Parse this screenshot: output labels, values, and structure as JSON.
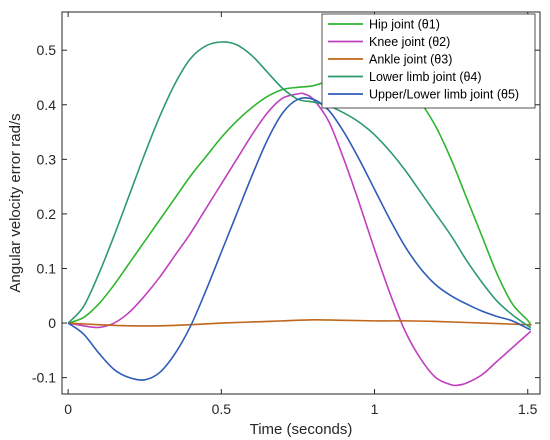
{
  "chart_data": {
    "type": "line",
    "title": "",
    "xlabel": "Time (seconds)",
    "ylabel": "Angular velocity error rad/s",
    "xlim": [
      -0.02,
      1.54
    ],
    "ylim": [
      -0.13,
      0.57
    ],
    "xticks": [
      0,
      0.5,
      1,
      1.5
    ],
    "xtick_labels": [
      "0",
      "0.5",
      "1",
      "1.5"
    ],
    "yticks": [
      -0.1,
      0,
      0.1,
      0.2,
      0.3,
      0.4,
      0.5
    ],
    "ytick_labels": [
      "-0.1",
      "0",
      "0.1",
      "0.2",
      "0.3",
      "0.4",
      "0.5"
    ],
    "grid": false,
    "legend_position": "top-right",
    "series": [
      {
        "name": "Hip joint (θ1)",
        "color": "#2fb52f",
        "x": [
          0,
          0.05,
          0.1,
          0.15,
          0.2,
          0.25,
          0.3,
          0.35,
          0.4,
          0.45,
          0.5,
          0.55,
          0.6,
          0.65,
          0.7,
          0.75,
          0.8,
          0.85,
          0.9,
          0.95,
          1.0,
          1.05,
          1.1,
          1.15,
          1.2,
          1.25,
          1.3,
          1.35,
          1.4,
          1.45,
          1.5,
          1.51
        ],
        "values": [
          0,
          0.01,
          0.035,
          0.07,
          0.11,
          0.15,
          0.19,
          0.23,
          0.27,
          0.305,
          0.34,
          0.37,
          0.395,
          0.415,
          0.428,
          0.432,
          0.435,
          0.445,
          0.46,
          0.47,
          0.472,
          0.462,
          0.44,
          0.405,
          0.36,
          0.3,
          0.23,
          0.16,
          0.09,
          0.035,
          0.005,
          -0.005
        ]
      },
      {
        "name": "Knee joint (θ2)",
        "color": "#c040c0",
        "x": [
          0,
          0.05,
          0.1,
          0.15,
          0.2,
          0.25,
          0.3,
          0.35,
          0.4,
          0.45,
          0.5,
          0.55,
          0.6,
          0.65,
          0.7,
          0.75,
          0.77,
          0.8,
          0.85,
          0.9,
          0.95,
          1.0,
          1.05,
          1.1,
          1.15,
          1.2,
          1.25,
          1.27,
          1.3,
          1.35,
          1.4,
          1.45,
          1.5,
          1.51
        ],
        "values": [
          0,
          -0.005,
          -0.008,
          0.0,
          0.02,
          0.05,
          0.085,
          0.125,
          0.165,
          0.21,
          0.255,
          0.3,
          0.345,
          0.385,
          0.412,
          0.42,
          0.42,
          0.41,
          0.37,
          0.3,
          0.22,
          0.135,
          0.055,
          -0.015,
          -0.065,
          -0.1,
          -0.113,
          -0.114,
          -0.11,
          -0.095,
          -0.07,
          -0.045,
          -0.02,
          -0.015
        ]
      },
      {
        "name": "Ankle joint (θ3)",
        "color": "#c0661a",
        "x": [
          0,
          0.1,
          0.2,
          0.3,
          0.4,
          0.5,
          0.6,
          0.7,
          0.8,
          0.9,
          1.0,
          1.1,
          1.2,
          1.3,
          1.4,
          1.5,
          1.51
        ],
        "values": [
          0,
          -0.003,
          -0.005,
          -0.005,
          -0.003,
          0.0,
          0.002,
          0.004,
          0.006,
          0.005,
          0.004,
          0.004,
          0.003,
          0.001,
          -0.001,
          -0.003,
          -0.003
        ]
      },
      {
        "name": "Lower limb joint (θ4)",
        "color": "#2e9a6e",
        "x": [
          0,
          0.05,
          0.1,
          0.15,
          0.2,
          0.25,
          0.3,
          0.35,
          0.4,
          0.45,
          0.5,
          0.55,
          0.6,
          0.65,
          0.7,
          0.75,
          0.8,
          0.85,
          0.9,
          0.95,
          1.0,
          1.05,
          1.1,
          1.15,
          1.2,
          1.25,
          1.3,
          1.35,
          1.4,
          1.45,
          1.5,
          1.51
        ],
        "values": [
          0,
          0.03,
          0.09,
          0.16,
          0.235,
          0.31,
          0.38,
          0.44,
          0.485,
          0.508,
          0.515,
          0.51,
          0.49,
          0.46,
          0.43,
          0.41,
          0.405,
          0.398,
          0.385,
          0.368,
          0.345,
          0.315,
          0.28,
          0.24,
          0.2,
          0.16,
          0.115,
          0.075,
          0.04,
          0.015,
          -0.005,
          -0.008
        ]
      },
      {
        "name": "Upper/Lower limb joint (θ5)",
        "color": "#2e5cb8",
        "x": [
          0,
          0.05,
          0.1,
          0.15,
          0.2,
          0.25,
          0.3,
          0.35,
          0.4,
          0.45,
          0.5,
          0.55,
          0.6,
          0.65,
          0.7,
          0.75,
          0.8,
          0.85,
          0.9,
          0.95,
          1.0,
          1.05,
          1.1,
          1.15,
          1.2,
          1.25,
          1.3,
          1.35,
          1.4,
          1.45,
          1.5,
          1.51
        ],
        "values": [
          0,
          -0.02,
          -0.055,
          -0.085,
          -0.1,
          -0.104,
          -0.09,
          -0.055,
          -0.005,
          0.06,
          0.13,
          0.2,
          0.27,
          0.335,
          0.385,
          0.41,
          0.41,
          0.39,
          0.35,
          0.3,
          0.245,
          0.19,
          0.14,
          0.1,
          0.07,
          0.05,
          0.035,
          0.022,
          0.012,
          0.004,
          -0.01,
          -0.012
        ]
      }
    ]
  }
}
